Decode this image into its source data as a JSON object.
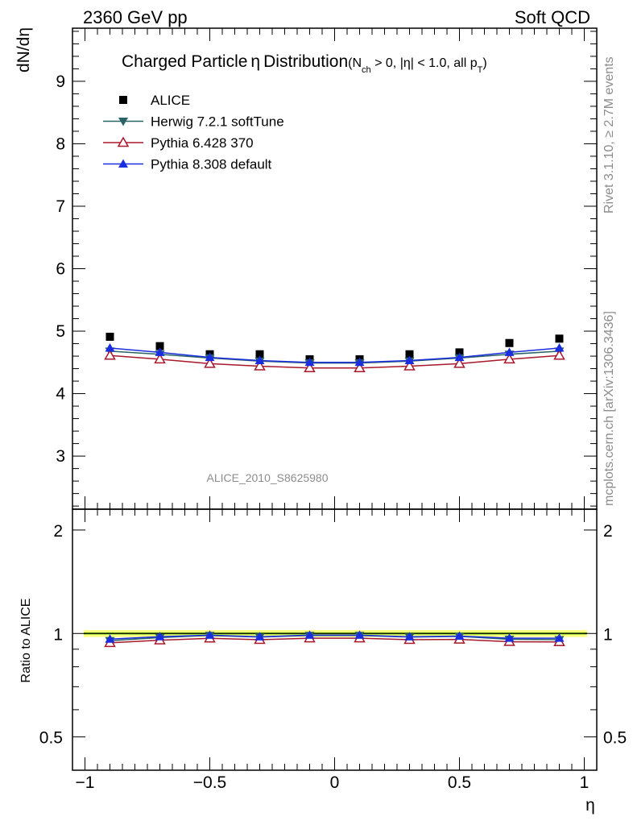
{
  "header": {
    "left": "2360 GeV pp",
    "right": "Soft QCD"
  },
  "side": {
    "top": "Rivet 3.1.10, ≥ 2.7M events",
    "bottom": "mcplots.cern.ch [arXiv:1306.3436]"
  },
  "chart_data": [
    {
      "type": "scatter",
      "title": "Charged Particle η Distribution",
      "subtitle": "(N_ch > 0, |η| < 1.0, all p_T)",
      "title_parts": {
        "main": "Charged Particle",
        "eta": "η",
        "dist": "Distribution",
        "open": "(N",
        "ch": "ch",
        "cond": " > 0, |η| < 1.0, all p",
        "T": "T",
        "close": ")"
      },
      "ylabel": "dN/dη",
      "xlabel": "",
      "xlim": [
        -1.05,
        1.05
      ],
      "ylim": [
        2.15,
        9.85
      ],
      "y_ticks": [
        3,
        4,
        5,
        6,
        7,
        8,
        9
      ],
      "x": [
        -0.9,
        -0.7,
        -0.5,
        -0.3,
        -0.1,
        0.1,
        0.3,
        0.5,
        0.7,
        0.9
      ],
      "legend_position": "top-left",
      "watermark": "ALICE_2010_S8625980",
      "series": [
        {
          "name": "ALICE",
          "color": "#000000",
          "marker": "square",
          "values": [
            4.91,
            4.76,
            4.63,
            4.63,
            4.55,
            4.55,
            4.63,
            4.66,
            4.81,
            4.88
          ]
        },
        {
          "name": "Herwig 7.2.1 softTune",
          "color": "#2a6366",
          "marker": "triangle-down",
          "values": [
            4.68,
            4.63,
            4.57,
            4.52,
            4.49,
            4.49,
            4.52,
            4.57,
            4.63,
            4.68
          ]
        },
        {
          "name": "Pythia 6.428 370",
          "color": "#a8182a",
          "marker": "triangle-up-open",
          "values": [
            4.61,
            4.55,
            4.48,
            4.44,
            4.41,
            4.41,
            4.44,
            4.48,
            4.55,
            4.61
          ]
        },
        {
          "name": "Pythia 8.308 default",
          "color": "#1a2ee0",
          "marker": "triangle-up",
          "values": [
            4.73,
            4.66,
            4.58,
            4.53,
            4.5,
            4.5,
            4.53,
            4.58,
            4.66,
            4.73
          ]
        }
      ]
    },
    {
      "type": "scatter",
      "ylabel": "Ratio to ALICE",
      "xlabel": "η",
      "xlim": [
        -1.05,
        1.05
      ],
      "ylim": [
        0.4,
        2.3
      ],
      "y_ticks": [
        0.5,
        1,
        2
      ],
      "y_tick_labels": [
        "0.5",
        "1",
        "2"
      ],
      "x_ticks": [
        -1,
        -0.5,
        0,
        0.5,
        1
      ],
      "x_tick_labels": [
        "−1",
        "−0.5",
        "0",
        "0.5",
        "1"
      ],
      "x": [
        -0.9,
        -0.7,
        -0.5,
        -0.3,
        -0.1,
        0.1,
        0.3,
        0.5,
        0.7,
        0.9
      ],
      "band": {
        "stat_color": "#ffff80",
        "syst_color": "#99e033",
        "low": 0.977,
        "high": 1.023
      },
      "series": [
        {
          "name": "Herwig 7.2.1 softTune",
          "color": "#2a6366",
          "marker": "triangle-down",
          "values": [
            0.953,
            0.973,
            0.987,
            0.976,
            0.987,
            0.987,
            0.976,
            0.981,
            0.962,
            0.959
          ]
        },
        {
          "name": "Pythia 6.428 370",
          "color": "#a8182a",
          "marker": "triangle-up-open",
          "values": [
            0.939,
            0.956,
            0.968,
            0.959,
            0.969,
            0.969,
            0.959,
            0.961,
            0.946,
            0.945
          ]
        },
        {
          "name": "Pythia 8.308 default",
          "color": "#1a2ee0",
          "marker": "triangle-up",
          "values": [
            0.963,
            0.979,
            0.989,
            0.978,
            0.989,
            0.989,
            0.978,
            0.983,
            0.969,
            0.969
          ]
        }
      ]
    }
  ]
}
